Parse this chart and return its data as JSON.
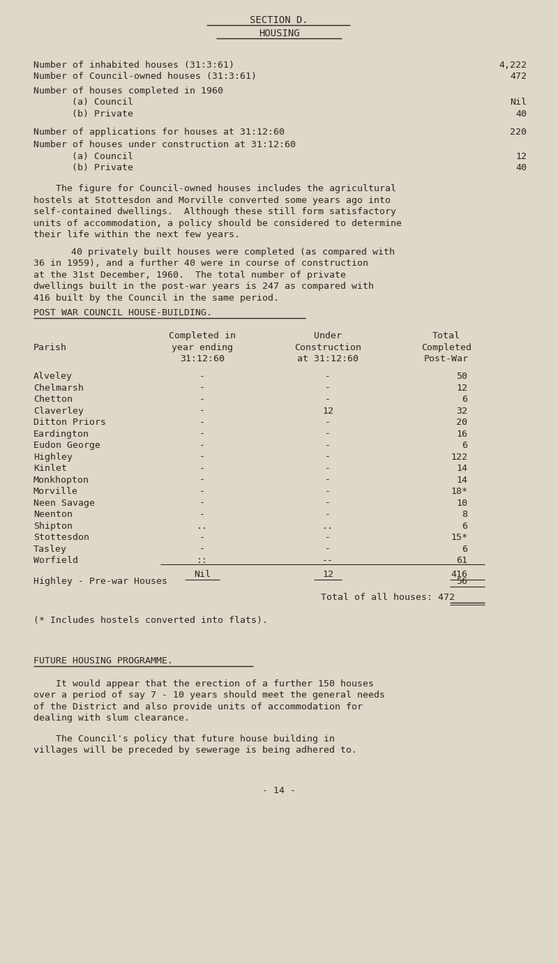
{
  "bg_color": "#ddd8c8",
  "text_color": "#2a2520",
  "title1": "SECTION D.",
  "title2": "HOUSING",
  "stats_lines": [
    {
      "label": "Number of inhabited houses (31:3:61)",
      "value": "4,222",
      "indent": 0
    },
    {
      "label": "Number of Council-owned houses (31:3:61)",
      "value": "472",
      "indent": 0
    },
    {
      "label": "Number of houses completed in 1960",
      "value": "",
      "indent": 0
    },
    {
      "label": "(a) Council",
      "value": "Nil",
      "indent": 1
    },
    {
      "label": "(b) Private",
      "value": "40",
      "indent": 1
    },
    {
      "label": "Number of applications for houses at 31:12:60",
      "value": "220",
      "indent": 0
    },
    {
      "label": "Number of houses under construction at 31:12:60",
      "value": "",
      "indent": 0
    },
    {
      "label": "(a) Council",
      "value": "12",
      "indent": 1
    },
    {
      "label": "(b) Private",
      "value": "40",
      "indent": 1
    }
  ],
  "para1_lines": [
    "    The figure for Council-owned houses includes the agricultural",
    "hostels at Stottesdon and Morville converted some years ago into",
    "self-contained dwellings.  Although these still form satisfactory",
    "units of accommodation, a policy should be considered to determine",
    "their life within the next few years."
  ],
  "para2_lines": [
    "    40 privately built houses were completed (as compared with",
    "36 in 1959), and a further 40 were in course of construction",
    "at the 31st December, 1960.  The total number of private",
    "dwellings built in the post-war years is 247 as compared with",
    "416 built by the Council in the same period."
  ],
  "table_title": "POST WAR COUNCIL HOUSE-BUILDING.",
  "col_header_parish": "Parish",
  "col_header_c1a": "Completed in",
  "col_header_c1b": "year ending",
  "col_header_c1c": "31:12:60",
  "col_header_c2a": "Under",
  "col_header_c2b": "Construction",
  "col_header_c2c": "at 31:12:60",
  "col_header_c3a": "Total",
  "col_header_c3b": "Completed",
  "col_header_c3c": "Post-War",
  "table_rows": [
    [
      "Alveley",
      "-",
      "-",
      "50"
    ],
    [
      "Chelmarsh",
      "-",
      "-",
      "12"
    ],
    [
      "Chetton",
      "-",
      "-",
      "6"
    ],
    [
      "Claverley",
      "-",
      "12",
      "32"
    ],
    [
      "Ditton Priors",
      "-",
      "-",
      "20"
    ],
    [
      "Eardington",
      "-",
      "-",
      "16"
    ],
    [
      "Eudon George",
      "-",
      "-",
      "6"
    ],
    [
      "Highley",
      "-",
      "-",
      "122"
    ],
    [
      "Kinlet",
      "-",
      "-",
      "14"
    ],
    [
      "Monkhopton",
      "-",
      "-",
      "14"
    ],
    [
      "Morville",
      "-",
      "-",
      "18*"
    ],
    [
      "Neen Savage",
      "-",
      "-",
      "10"
    ],
    [
      "Neenton",
      "-",
      "-",
      "8"
    ],
    [
      "Shipton",
      "..",
      "..",
      "6"
    ],
    [
      "Stottesdon",
      "-",
      "-",
      "15*"
    ],
    [
      "Tasley",
      "-",
      "-",
      "6"
    ],
    [
      "Worfield",
      "::",
      "--",
      "61"
    ]
  ],
  "total_c1": "Nil",
  "total_c2": "12",
  "total_c3": "416",
  "prewar_label": "Highley - Pre-war Houses",
  "prewar_val": "56",
  "total_all_label": "Total of all houses:",
  "total_all_val": "472",
  "footnote": "(* Includes hostels converted into flats).",
  "future_title": "FUTURE HOUSING PROGRAMME.",
  "future_para1_lines": [
    "    It would appear that the erection of a further 150 houses",
    "over a period of say 7 - 10 years should meet the general needs",
    "of the District and also provide units of accommodation for",
    "dealing with slum clearance."
  ],
  "future_para2_lines": [
    "    The Council's policy that future house building in",
    "villages will be preceded by sewerage is being adhered to."
  ],
  "page_number": "- 14 -"
}
